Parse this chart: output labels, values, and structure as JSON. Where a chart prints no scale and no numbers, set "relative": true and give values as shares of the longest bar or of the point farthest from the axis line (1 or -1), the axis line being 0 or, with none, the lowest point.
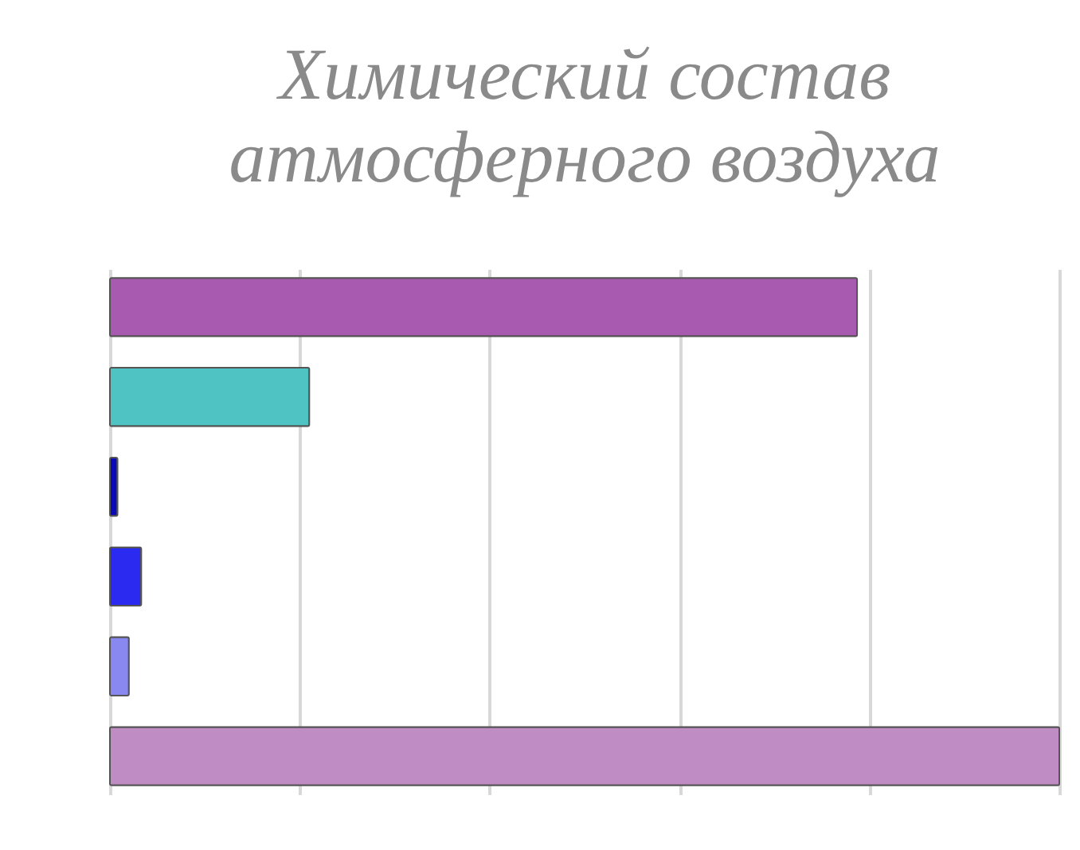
{
  "chart_data": {
    "type": "bar",
    "orientation": "horizontal",
    "relative": true,
    "title": "Химический состав\nатмосферного воздуха",
    "categories": [
      null,
      null,
      null,
      null,
      null,
      null
    ],
    "values": [
      0.787,
      0.21,
      0.008,
      0.033,
      0.02,
      1
    ],
    "colors": [
      "#a85ab0",
      "#4fc3c3",
      "#0a0ab8",
      "#2a2af0",
      "#8888f0",
      "#c08cc4"
    ],
    "grid": "x"
  }
}
